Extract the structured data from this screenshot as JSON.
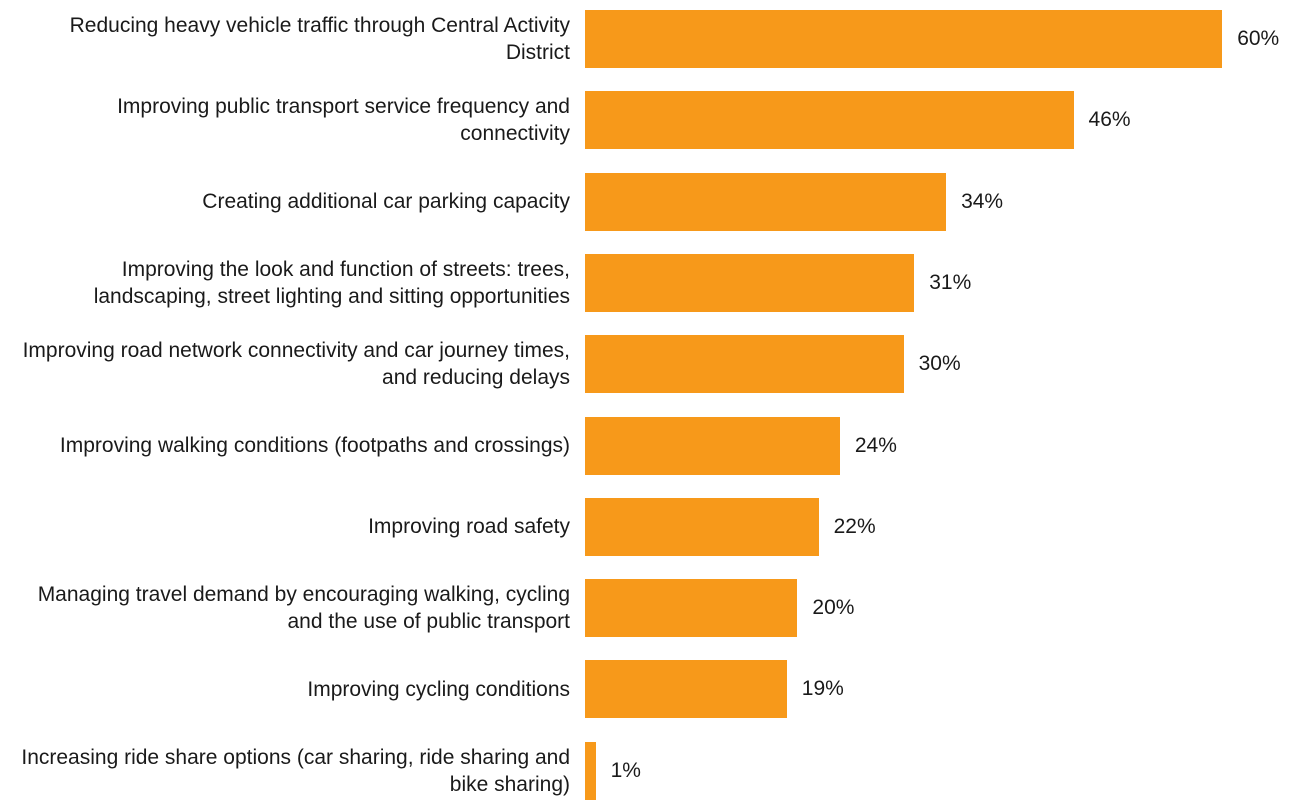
{
  "chart_data": {
    "type": "bar",
    "orientation": "horizontal",
    "categories": [
      "Reducing heavy vehicle traffic through Central Activity District",
      "Improving public transport service frequency and connectivity",
      "Creating additional car parking capacity",
      "Improving the look and function of streets: trees, landscaping, street lighting and sitting opportunities",
      "Improving road network connectivity and car journey times, and reducing delays",
      "Improving walking conditions (footpaths and crossings)",
      "Improving road safety",
      "Managing travel demand by encouraging walking, cycling and the use of public transport",
      "Improving cycling conditions",
      "Increasing ride share options (car sharing, ride sharing and bike sharing)"
    ],
    "values": [
      60,
      46,
      34,
      31,
      30,
      24,
      22,
      20,
      19,
      1
    ],
    "value_labels": [
      "60%",
      "46%",
      "34%",
      "31%",
      "30%",
      "24%",
      "22%",
      "20%",
      "19%",
      "1%"
    ],
    "color": "#f7991a"
  }
}
